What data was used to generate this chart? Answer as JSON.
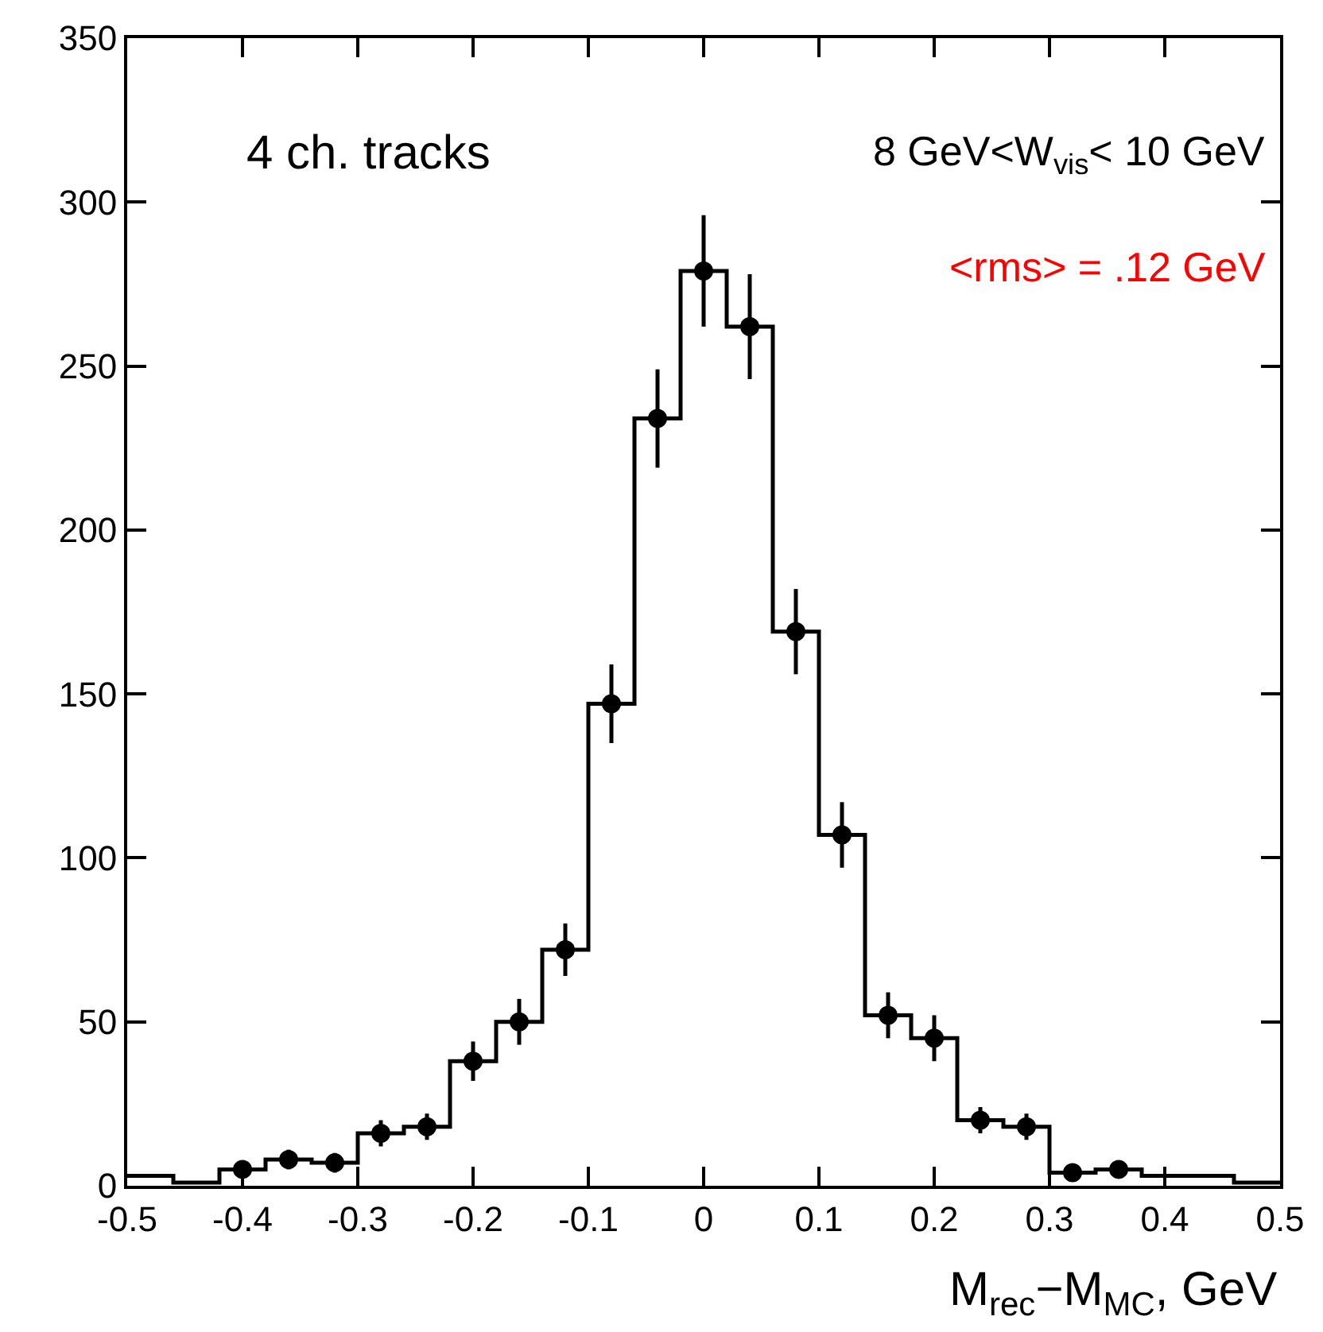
{
  "chart_data": {
    "type": "histogram",
    "xlabel": "M$_{rec}$−M$_{MC}$, GeV",
    "annotations": [
      "4 ch. tracks",
      "8 GeV<W$_{vis}$< 10 GeV",
      "<rms> = .12 GeV"
    ],
    "bins": [
      -0.5,
      -0.46,
      -0.42,
      -0.38,
      -0.34,
      -0.3,
      -0.26,
      -0.22,
      -0.18,
      -0.14,
      -0.1,
      -0.06,
      -0.02,
      0.02,
      0.06,
      0.1,
      0.14,
      0.18,
      0.22,
      0.26,
      0.3,
      0.34,
      0.38,
      0.42,
      0.46,
      0.5
    ],
    "series": [
      {
        "color": "#000000",
        "values": [
          3,
          1,
          5,
          8,
          7,
          16,
          18,
          38,
          50,
          72,
          147,
          234,
          279,
          262,
          169,
          107,
          52,
          45,
          20,
          18,
          4,
          5,
          3,
          3,
          1
        ]
      },
      {
        "type": "scatter",
        "color": "#000000",
        "x": [
          -0.4,
          -0.36,
          -0.32,
          -0.28,
          -0.24,
          -0.2,
          -0.16,
          -0.12,
          -0.08,
          -0.04,
          0,
          0.04,
          0.08,
          0.12,
          0.16,
          0.2,
          0.24,
          0.28,
          0.32,
          0.36
        ],
        "values": [
          5,
          8,
          7,
          16,
          18,
          38,
          50,
          72,
          147,
          234,
          279,
          262,
          169,
          107,
          52,
          45,
          20,
          18,
          4,
          5
        ],
        "errors": [
          2,
          3,
          3,
          4,
          4,
          6,
          7,
          8,
          12,
          15,
          17,
          16,
          13,
          10,
          7,
          7,
          4,
          4,
          2,
          2
        ]
      }
    ],
    "marker": "circle",
    "xlim": [
      -0.5,
      0.5
    ],
    "xticks": [
      -0.5,
      -0.4,
      -0.3,
      -0.2,
      -0.1,
      0,
      0.1,
      0.2,
      0.3,
      0.4,
      0.5
    ],
    "ylim": [
      0,
      350
    ],
    "yticks": [
      0,
      50,
      100,
      150,
      200,
      250,
      300,
      350
    ]
  }
}
